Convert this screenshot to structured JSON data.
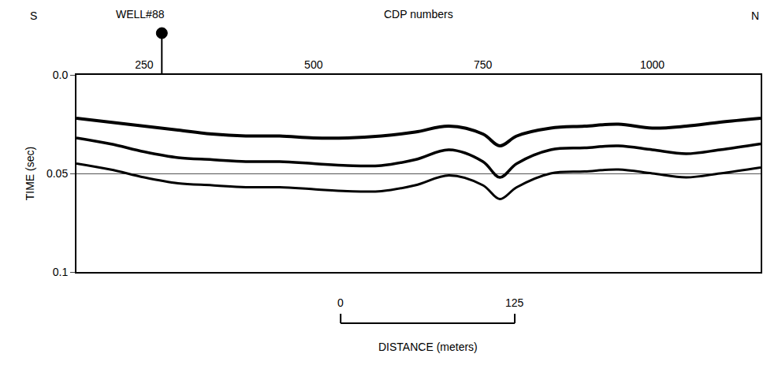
{
  "chart_data": {
    "type": "line",
    "x_label": "CDP numbers",
    "y_label": "TIME (sec)",
    "annotations": [
      {
        "text": "S",
        "position": "left"
      },
      {
        "text": "N",
        "position": "right"
      }
    ],
    "well": {
      "label": "WELL#88",
      "x": 276
    },
    "scale_bar": {
      "labels": [
        0,
        125
      ],
      "title": "DISTANCE (meters)",
      "x": [
        540,
        797
      ]
    },
    "x": [
      150,
      200,
      250,
      300,
      350,
      400,
      450,
      500,
      550,
      600,
      650,
      700,
      750,
      775,
      800,
      850,
      900,
      950,
      1000,
      1050,
      1100,
      1160
    ],
    "series": [
      {
        "color": "#000000",
        "line_style": "solid",
        "values": [
          0.022,
          0.024,
          0.026,
          0.028,
          0.03,
          0.031,
          0.031,
          0.032,
          0.032,
          0.031,
          0.029,
          0.026,
          0.03,
          0.036,
          0.031,
          0.027,
          0.026,
          0.025,
          0.027,
          0.026,
          0.024,
          0.022
        ]
      },
      {
        "color": "#000000",
        "line_style": "solid",
        "values": [
          0.032,
          0.035,
          0.039,
          0.042,
          0.043,
          0.044,
          0.044,
          0.045,
          0.046,
          0.046,
          0.043,
          0.038,
          0.044,
          0.052,
          0.045,
          0.038,
          0.037,
          0.036,
          0.038,
          0.04,
          0.038,
          0.035
        ]
      },
      {
        "color": "#000000",
        "line_style": "solid",
        "values": [
          0.045,
          0.048,
          0.052,
          0.055,
          0.056,
          0.057,
          0.057,
          0.058,
          0.059,
          0.059,
          0.056,
          0.051,
          0.056,
          0.063,
          0.057,
          0.05,
          0.049,
          0.048,
          0.05,
          0.052,
          0.05,
          0.047
        ]
      }
    ],
    "xlim": [
      150,
      1160
    ],
    "xticks": [
      250,
      500,
      750,
      1000
    ],
    "ylim": [
      0,
      0.1
    ],
    "yticks": [
      {
        "value": 0,
        "label": "0.0"
      },
      0.05,
      0.1
    ],
    "grid": true
  }
}
